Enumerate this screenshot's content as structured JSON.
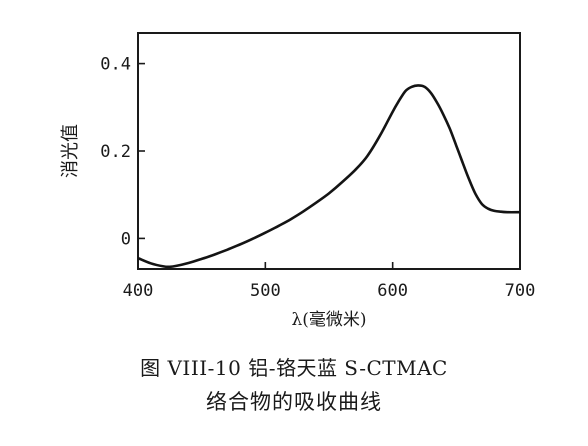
{
  "chart_data": {
    "type": "line",
    "xlabel": "λ(毫微米)",
    "ylabel": "消光值",
    "xlim": [
      400,
      700
    ],
    "ylim": [
      -0.07,
      0.47
    ],
    "x_ticks": [
      {
        "value": 400,
        "label": "400"
      },
      {
        "value": 500,
        "label": "500"
      },
      {
        "value": 600,
        "label": "600"
      },
      {
        "value": 700,
        "label": "700"
      }
    ],
    "y_ticks": [
      {
        "value": 0,
        "label": "0"
      },
      {
        "value": 0.2,
        "label": "0.2"
      },
      {
        "value": 0.4,
        "label": "0.4"
      }
    ],
    "grid": false,
    "series": [
      {
        "x": [
          400,
          410,
          420,
          425,
          430,
          440,
          450,
          460,
          470,
          480,
          490,
          500,
          510,
          520,
          530,
          540,
          550,
          560,
          570,
          580,
          590,
          600,
          605,
          610,
          615,
          620,
          625,
          630,
          635,
          640,
          645,
          650,
          655,
          660,
          665,
          670,
          675,
          680,
          685,
          690,
          700
        ],
        "y": [
          -0.045,
          -0.057,
          -0.064,
          -0.065,
          -0.063,
          -0.056,
          -0.047,
          -0.037,
          -0.026,
          -0.014,
          -0.001,
          0.013,
          0.028,
          0.044,
          0.062,
          0.082,
          0.103,
          0.128,
          0.155,
          0.188,
          0.235,
          0.29,
          0.315,
          0.337,
          0.347,
          0.35,
          0.347,
          0.333,
          0.31,
          0.282,
          0.25,
          0.212,
          0.173,
          0.135,
          0.102,
          0.079,
          0.068,
          0.063,
          0.061,
          0.06,
          0.06
        ]
      }
    ]
  },
  "caption": {
    "line1": "图 VIII-10   铝-铬天蓝 S-CTMAC",
    "line2": "络合物的吸收曲线"
  }
}
